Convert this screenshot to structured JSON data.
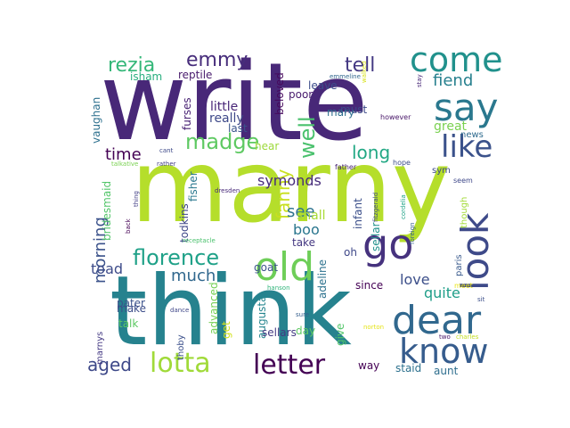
{
  "cloud": {
    "words": [
      {
        "text": "write",
        "color": "#482878"
      },
      {
        "text": "marny",
        "color": "#b5de2b"
      },
      {
        "text": "think",
        "color": "#26828e"
      },
      {
        "text": "old",
        "color": "#6ece58"
      },
      {
        "text": "go",
        "color": "#46327e"
      },
      {
        "text": "look",
        "color": "#3e4a89"
      },
      {
        "text": "dear",
        "color": "#31688e"
      },
      {
        "text": "come",
        "color": "#21918c"
      },
      {
        "text": "say",
        "color": "#2a788e"
      },
      {
        "text": "know",
        "color": "#365c8d"
      },
      {
        "text": "like",
        "color": "#3b528b"
      },
      {
        "text": "lotta",
        "color": "#a0da39"
      },
      {
        "text": "letter",
        "color": "#440154"
      },
      {
        "text": "madge",
        "color": "#5ec962"
      },
      {
        "text": "florence",
        "color": "#1fa188"
      },
      {
        "text": "rezia",
        "color": "#35b779"
      },
      {
        "text": "emmy",
        "color": "#472d7b"
      },
      {
        "text": "tell",
        "color": "#443983"
      },
      {
        "text": "well",
        "color": "#4ac16d"
      },
      {
        "text": "fanny",
        "color": "#c8e020"
      },
      {
        "text": "long",
        "color": "#22a884"
      },
      {
        "text": "aged",
        "color": "#3e4989"
      },
      {
        "text": "time",
        "color": "#440154"
      },
      {
        "text": "fiend",
        "color": "#27808e"
      },
      {
        "text": "symonds",
        "color": "#472c7a"
      },
      {
        "text": "see",
        "color": "#2c728e"
      },
      {
        "text": "morning",
        "color": "#3b528b"
      },
      {
        "text": "much",
        "color": "#31688e"
      },
      {
        "text": "love",
        "color": "#3c4f8a"
      },
      {
        "text": "boo",
        "color": "#2a768e"
      },
      {
        "text": "shall",
        "color": "#a8db34"
      },
      {
        "text": "little",
        "color": "#482677"
      },
      {
        "text": "really",
        "color": "#3e4989"
      },
      {
        "text": "quite",
        "color": "#1f9e89"
      },
      {
        "text": "great",
        "color": "#7ad151"
      },
      {
        "text": "vaughan",
        "color": "#2d708e"
      },
      {
        "text": "toad",
        "color": "#3e4c8a"
      },
      {
        "text": "isham",
        "color": "#29af7f"
      },
      {
        "text": "reptile",
        "color": "#481a6c"
      },
      {
        "text": "beloved",
        "color": "#46085c"
      },
      {
        "text": "furses",
        "color": "#482173"
      },
      {
        "text": "must",
        "color": "#3e4a89"
      },
      {
        "text": "mary",
        "color": "#2e6f8e"
      },
      {
        "text": "leave",
        "color": "#3d4d8a"
      },
      {
        "text": "poor",
        "color": "#481b6d"
      },
      {
        "text": "last",
        "color": "#3a548c"
      },
      {
        "text": "hear",
        "color": "#9dd93b"
      },
      {
        "text": "fisher",
        "color": "#2a788e"
      },
      {
        "text": "bridesmaid",
        "color": "#52c569"
      },
      {
        "text": "todkins",
        "color": "#3f4788"
      },
      {
        "text": "infant",
        "color": "#3c4f8a"
      },
      {
        "text": "sellar",
        "color": "#21918c"
      },
      {
        "text": "take",
        "color": "#453882"
      },
      {
        "text": "goat",
        "color": "#3b528b"
      },
      {
        "text": "oh",
        "color": "#3f4889"
      },
      {
        "text": "adeline",
        "color": "#2c728e"
      },
      {
        "text": "since",
        "color": "#440154"
      },
      {
        "text": "pater",
        "color": "#3b528b"
      },
      {
        "text": "make",
        "color": "#3d4e8a"
      },
      {
        "text": "talk",
        "color": "#5cc863"
      },
      {
        "text": "advanced",
        "color": "#75d054"
      },
      {
        "text": "get",
        "color": "#d2e21b"
      },
      {
        "text": "augusta",
        "color": "#25858e"
      },
      {
        "text": "sellars",
        "color": "#443a83"
      },
      {
        "text": "day",
        "color": "#5ec962"
      },
      {
        "text": "give",
        "color": "#52c569"
      },
      {
        "text": "way",
        "color": "#440154"
      },
      {
        "text": "staid",
        "color": "#2d718e"
      },
      {
        "text": "aunt",
        "color": "#2e6e8e"
      },
      {
        "text": "marnys",
        "color": "#443983"
      },
      {
        "text": "thoby",
        "color": "#3c508b"
      },
      {
        "text": "though",
        "color": "#a2da37"
      },
      {
        "text": "paris",
        "color": "#38598c"
      },
      {
        "text": "meet",
        "color": "#eae51a"
      },
      {
        "text": "sym",
        "color": "#3e4a89"
      },
      {
        "text": "news",
        "color": "#2f6b8e"
      },
      {
        "text": "seem",
        "color": "#3f4889"
      },
      {
        "text": "hope",
        "color": "#3d4e8a"
      },
      {
        "text": "father",
        "color": "#482475"
      },
      {
        "text": "however",
        "color": "#481668"
      },
      {
        "text": "stay",
        "color": "#482878"
      },
      {
        "text": "walked",
        "color": "#d8e219"
      },
      {
        "text": "emmeline",
        "color": "#31678e"
      },
      {
        "text": "cant",
        "color": "#3e4989"
      },
      {
        "text": "rather",
        "color": "#433e85"
      },
      {
        "text": "talkative",
        "color": "#7ad151"
      },
      {
        "text": "dresden",
        "color": "#482979"
      },
      {
        "text": "thing",
        "color": "#423f85"
      },
      {
        "text": "back",
        "color": "#440154"
      },
      {
        "text": "receptacle",
        "color": "#4ac16d"
      },
      {
        "text": "hanson",
        "color": "#31b57b"
      },
      {
        "text": "dance",
        "color": "#3f4788"
      },
      {
        "text": "sure",
        "color": "#355f8d"
      },
      {
        "text": "norton",
        "color": "#e5e419"
      },
      {
        "text": "two",
        "color": "#481467"
      },
      {
        "text": "charles",
        "color": "#c2df23"
      },
      {
        "text": "sit",
        "color": "#3c4f8a"
      },
      {
        "text": "fitzgerald",
        "color": "#3e4989"
      },
      {
        "text": "foreign",
        "color": "#355e8d"
      },
      {
        "text": "cordelia",
        "color": "#20a386"
      }
    ]
  }
}
